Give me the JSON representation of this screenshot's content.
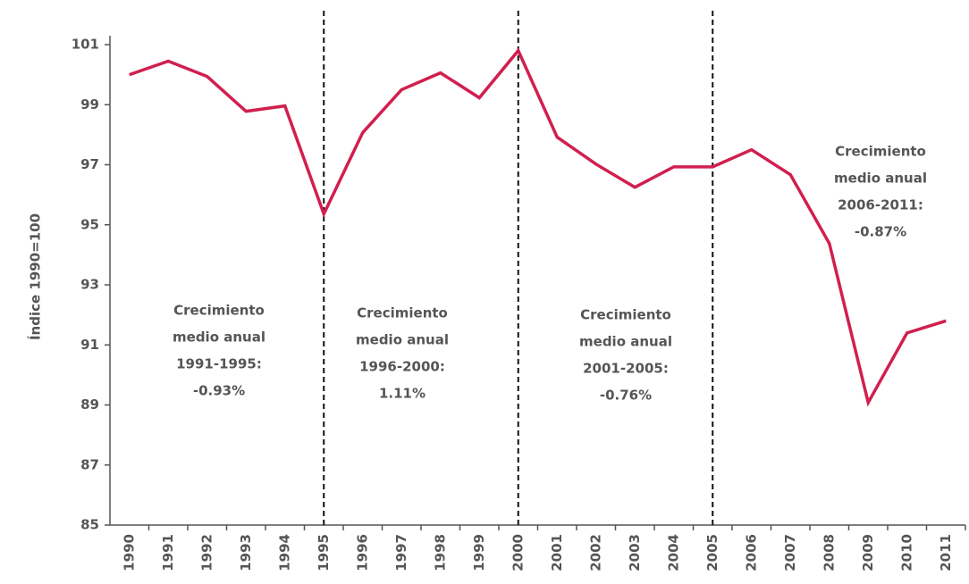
{
  "chart_data": {
    "type": "line",
    "y_label": "Índice 1990=100",
    "categories": [
      "1990",
      "1991",
      "1992",
      "1993",
      "1994",
      "1995",
      "1996",
      "1997",
      "1998",
      "1999",
      "2000",
      "2001",
      "2002",
      "2003",
      "2004",
      "2005",
      "2006",
      "2007",
      "2008",
      "2009",
      "2010",
      "2011"
    ],
    "series": [
      {
        "name": "Índice",
        "color": "#d11f4f",
        "values": [
          100.0,
          100.45,
          99.94,
          98.78,
          98.96,
          95.36,
          98.07,
          99.5,
          100.06,
          99.23,
          100.8,
          97.92,
          97.02,
          96.25,
          96.93,
          96.93,
          97.5,
          96.67,
          94.38,
          89.08,
          91.4,
          91.8
        ]
      }
    ],
    "ylim": [
      85,
      101
    ],
    "yticks": [
      85,
      87,
      89,
      91,
      93,
      95,
      97,
      99,
      101
    ],
    "dividers": [
      5,
      10,
      15
    ],
    "annotations": [
      [
        "Crecimiento",
        "medio anual",
        "1991-1995:",
        "-0.93%"
      ],
      [
        "Crecimiento",
        "medio anual",
        "1996-2000:",
        "1.11%"
      ],
      [
        "Crecimiento",
        "medio anual",
        "2001-2005:",
        "-0.76%"
      ],
      [
        "Crecimiento",
        "medio anual",
        "2006-2011:",
        "-0.87%"
      ]
    ]
  }
}
